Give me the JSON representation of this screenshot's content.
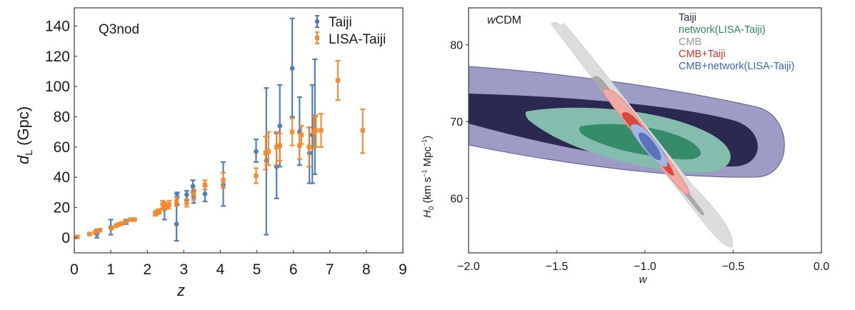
{
  "chart_data": [
    {
      "type": "scatter",
      "subtype": "errorbar",
      "annotation": "Q3nod",
      "xlabel": "z",
      "ylabel_main": "d",
      "ylabel_sub": "L",
      "ylabel_unit": " (Gpc)",
      "xlim": [
        0,
        9
      ],
      "ylim": [
        -10,
        152
      ],
      "xticks": [
        0,
        1,
        2,
        3,
        4,
        5,
        6,
        7,
        8,
        9
      ],
      "yticks": [
        0,
        20,
        40,
        60,
        80,
        100,
        120,
        140
      ],
      "grid": false,
      "legend_position": "top-right",
      "series": [
        {
          "name": "Taiji",
          "color": "#4a7ab0",
          "marker": "circle",
          "points": [
            {
              "x": 0.62,
              "y": 2.5,
              "lo": 0,
              "hi": 5.5
            },
            {
              "x": 1.0,
              "y": 7,
              "lo": 2,
              "hi": 12
            },
            {
              "x": 1.42,
              "y": 10.5,
              "lo": 9,
              "hi": 12
            },
            {
              "x": 2.47,
              "y": 19,
              "lo": 12,
              "hi": 22
            },
            {
              "x": 2.8,
              "y": 9,
              "lo": -2,
              "hi": 29
            },
            {
              "x": 2.82,
              "y": 27,
              "lo": 22,
              "hi": 30
            },
            {
              "x": 3.08,
              "y": 28.5,
              "lo": 25,
              "hi": 31
            },
            {
              "x": 3.25,
              "y": 34,
              "lo": 30,
              "hi": 38
            },
            {
              "x": 3.27,
              "y": 27,
              "lo": 23,
              "hi": 31
            },
            {
              "x": 3.58,
              "y": 29,
              "lo": 24,
              "hi": 34
            },
            {
              "x": 4.08,
              "y": 35,
              "lo": 21,
              "hi": 50
            },
            {
              "x": 4.98,
              "y": 57,
              "lo": 50,
              "hi": 65
            },
            {
              "x": 5.26,
              "y": 51,
              "lo": 2,
              "hi": 99
            },
            {
              "x": 5.54,
              "y": 47,
              "lo": 26,
              "hi": 69
            },
            {
              "x": 5.63,
              "y": 74,
              "lo": 47,
              "hi": 101
            },
            {
              "x": 5.97,
              "y": 112,
              "lo": 80,
              "hi": 145
            },
            {
              "x": 6.17,
              "y": 70,
              "lo": 48,
              "hi": 93
            },
            {
              "x": 6.44,
              "y": 56,
              "lo": 36,
              "hi": 73
            },
            {
              "x": 6.52,
              "y": 68,
              "lo": 36,
              "hi": 101
            },
            {
              "x": 6.59,
              "y": 80,
              "lo": 42,
              "hi": 118
            }
          ]
        },
        {
          "name": "LISA-Taiji",
          "color": "#f28a30",
          "marker": "square",
          "points": [
            {
              "x": 0.08,
              "y": 0.5,
              "lo": 0,
              "hi": 1
            },
            {
              "x": 0.42,
              "y": 2.5,
              "lo": 2,
              "hi": 3
            },
            {
              "x": 0.57,
              "y": 3.5,
              "lo": 3,
              "hi": 4
            },
            {
              "x": 0.65,
              "y": 4.5,
              "lo": 4,
              "hi": 5
            },
            {
              "x": 0.7,
              "y": 5,
              "lo": 4.5,
              "hi": 5.5
            },
            {
              "x": 1.02,
              "y": 6.5,
              "lo": 5.5,
              "hi": 7.5
            },
            {
              "x": 1.15,
              "y": 8,
              "lo": 7.5,
              "hi": 8.5
            },
            {
              "x": 1.22,
              "y": 8.8,
              "lo": 8.3,
              "hi": 9.3
            },
            {
              "x": 1.3,
              "y": 9.5,
              "lo": 9,
              "hi": 10
            },
            {
              "x": 1.4,
              "y": 10.5,
              "lo": 10,
              "hi": 11
            },
            {
              "x": 1.55,
              "y": 12,
              "lo": 11.5,
              "hi": 12.5
            },
            {
              "x": 1.65,
              "y": 12,
              "lo": 11.5,
              "hi": 12.5
            },
            {
              "x": 2.22,
              "y": 16,
              "lo": 14.5,
              "hi": 17.5
            },
            {
              "x": 2.28,
              "y": 17,
              "lo": 15.5,
              "hi": 18.5
            },
            {
              "x": 2.33,
              "y": 17.5,
              "lo": 16,
              "hi": 19
            },
            {
              "x": 2.42,
              "y": 22,
              "lo": 19.5,
              "hi": 24.5
            },
            {
              "x": 2.47,
              "y": 21,
              "lo": 18.5,
              "hi": 23.5
            },
            {
              "x": 2.52,
              "y": 21,
              "lo": 19,
              "hi": 23
            },
            {
              "x": 2.6,
              "y": 22,
              "lo": 19.5,
              "hi": 24.5
            },
            {
              "x": 2.8,
              "y": 24,
              "lo": 21,
              "hi": 27
            },
            {
              "x": 3.08,
              "y": 23,
              "lo": 20.5,
              "hi": 25.5
            },
            {
              "x": 3.27,
              "y": 29,
              "lo": 25,
              "hi": 32
            },
            {
              "x": 3.58,
              "y": 35,
              "lo": 32,
              "hi": 38
            },
            {
              "x": 4.08,
              "y": 38,
              "lo": 33,
              "hi": 43
            },
            {
              "x": 4.98,
              "y": 41,
              "lo": 36,
              "hi": 46
            },
            {
              "x": 5.24,
              "y": 56,
              "lo": 45,
              "hi": 67
            },
            {
              "x": 5.32,
              "y": 57,
              "lo": 48,
              "hi": 70
            },
            {
              "x": 5.54,
              "y": 60,
              "lo": 48,
              "hi": 70
            },
            {
              "x": 5.63,
              "y": 61,
              "lo": 51,
              "hi": 69
            },
            {
              "x": 5.97,
              "y": 70,
              "lo": 61,
              "hi": 79
            },
            {
              "x": 6.17,
              "y": 61,
              "lo": 52,
              "hi": 69
            },
            {
              "x": 6.22,
              "y": 68,
              "lo": 62,
              "hi": 74
            },
            {
              "x": 6.43,
              "y": 60,
              "lo": 47,
              "hi": 73
            },
            {
              "x": 6.56,
              "y": 70,
              "lo": 59,
              "hi": 80
            },
            {
              "x": 6.62,
              "y": 71,
              "lo": 60,
              "hi": 81
            },
            {
              "x": 6.76,
              "y": 71,
              "lo": 60,
              "hi": 82
            },
            {
              "x": 7.22,
              "y": 104,
              "lo": 91,
              "hi": 117
            },
            {
              "x": 7.9,
              "y": 71,
              "lo": 56,
              "hi": 85
            }
          ]
        }
      ]
    },
    {
      "type": "contour",
      "annotation_italic": "w",
      "annotation_rest": "CDM",
      "xlabel": "w",
      "ylabel_main": "H",
      "ylabel_sub": "0",
      "ylabel_unit": " (km s",
      "ylabel_sup1": "−1",
      "ylabel_mid": " Mpc",
      "ylabel_sup2": "−1",
      "ylabel_end": ")",
      "xlim": [
        -2.0,
        0.0
      ],
      "ylim": [
        52.9,
        84.8
      ],
      "xticks": [
        "−2.0",
        "−1.5",
        "−1.0",
        "−0.5",
        "0.0"
      ],
      "xtick_values": [
        -2.0,
        -1.5,
        -1.0,
        -0.5,
        0.0
      ],
      "yticks": [
        60,
        70,
        80
      ],
      "grid": false,
      "legend_position": "top-right",
      "series": [
        {
          "name": "Taiji",
          "label_color": "#2b2950",
          "fill_outer": "#9d9cc6",
          "fill_inner": "#2b2950",
          "center": [
            -0.97,
            69.5
          ]
        },
        {
          "name": "network(LISA-Taiji)",
          "label_color": "#2e8b57",
          "fill_outer": "#84bcae",
          "fill_inner": "#348c68",
          "center": [
            -1.05,
            68.5
          ]
        },
        {
          "name": "CMB",
          "label_color": "#999999",
          "fill_outer": "#dcdcdc",
          "fill_inner": "#a9a9a9",
          "center": [
            -1.0,
            68.0
          ]
        },
        {
          "name": "CMB+Taiji",
          "label_color": "#d9342b",
          "fill_outer": "#eeaaa5",
          "fill_inner": "#d9493d",
          "center": [
            -0.98,
            68.3
          ]
        },
        {
          "name": "CMB+network(LISA-Taiji)",
          "label_color": "#3b66b8",
          "fill_outer": "#a4b8df",
          "fill_inner": "#5b73ba",
          "center": [
            -0.97,
            67.9
          ]
        }
      ]
    }
  ]
}
